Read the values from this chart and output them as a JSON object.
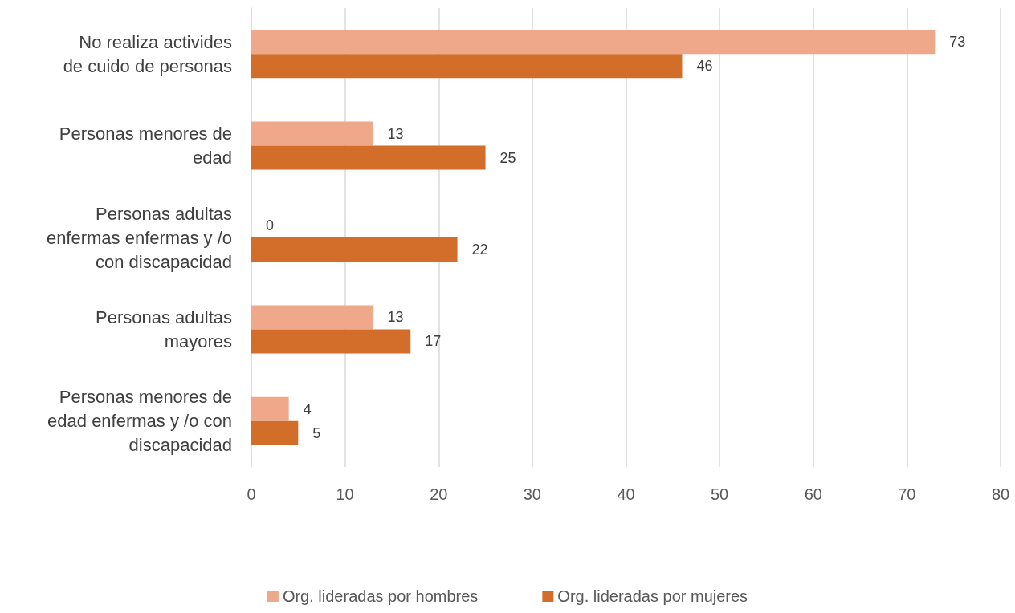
{
  "chart_data": {
    "type": "bar",
    "orientation": "horizontal",
    "categories": [
      "No realiza activides de cuido de personas",
      "Personas menores de edad",
      "Personas adultas enfermas enfermas y /o con discapacidad",
      "Personas adultas mayores",
      "Personas menores de edad enfermas y /o con discapacidad"
    ],
    "series": [
      {
        "name": "Org. lideradas por hombres",
        "color": "#f0a88a",
        "values": [
          73,
          13,
          0,
          13,
          4
        ]
      },
      {
        "name": "Org. lideradas por mujeres",
        "color": "#d26d2a",
        "values": [
          46,
          25,
          22,
          17,
          5
        ]
      }
    ],
    "xlim": [
      0,
      80
    ],
    "xticks": [
      0,
      10,
      20,
      30,
      40,
      50,
      60,
      70,
      80
    ],
    "grid": "x",
    "legend": "bottom",
    "data_labels": true
  }
}
